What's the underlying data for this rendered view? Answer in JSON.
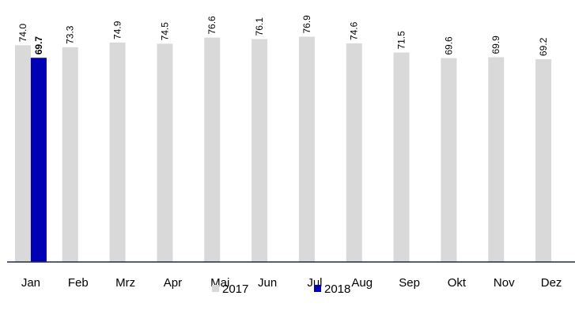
{
  "chart_data": {
    "type": "bar",
    "categories": [
      "Jan",
      "Feb",
      "Mrz",
      "Apr",
      "Mai",
      "Jun",
      "Jul",
      "Aug",
      "Sep",
      "Okt",
      "Nov",
      "Dez"
    ],
    "series": [
      {
        "name": "2017",
        "color": "#d9d9d9",
        "values": [
          74.0,
          73.3,
          74.9,
          74.5,
          76.6,
          76.1,
          76.9,
          74.6,
          71.5,
          69.6,
          69.9,
          69.2
        ],
        "value_labels": [
          "74.0",
          "73.3",
          "74.9",
          "74.5",
          "76.6",
          "76.1",
          "76.9",
          "74.6",
          "71.5",
          "69.6",
          "69.9",
          "69.2"
        ]
      },
      {
        "name": "2018",
        "color": "#0000b4",
        "values": [
          69.7,
          null,
          null,
          null,
          null,
          null,
          null,
          null,
          null,
          null,
          null,
          null
        ],
        "value_labels": [
          "69.7",
          null,
          null,
          null,
          null,
          null,
          null,
          null,
          null,
          null,
          null,
          null
        ]
      }
    ],
    "ylim": [
      0,
      80
    ]
  }
}
